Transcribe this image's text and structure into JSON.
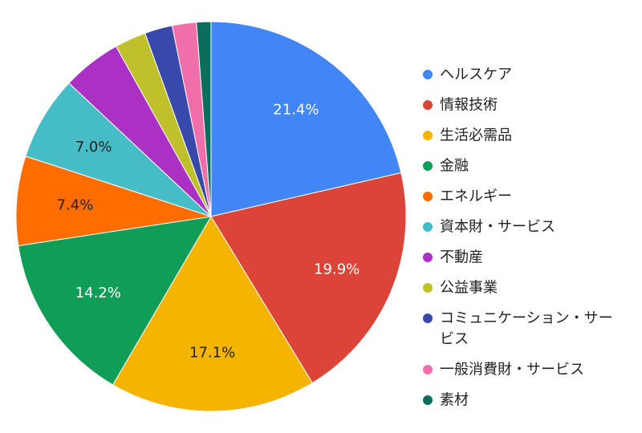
{
  "chart_data": {
    "type": "pie",
    "title": "",
    "legend_position": "right",
    "slices": [
      {
        "label": "ヘルスケア",
        "value": 21.4,
        "value_label": "21.4%",
        "color": "#4285F4",
        "label_color": "#ffffff"
      },
      {
        "label": "情報技術",
        "value": 19.9,
        "value_label": "19.9%",
        "color": "#DB4437",
        "label_color": "#ffffff"
      },
      {
        "label": "生活必需品",
        "value": 17.1,
        "value_label": "17.1%",
        "color": "#F4B400",
        "label_color": "#222222"
      },
      {
        "label": "金融",
        "value": 14.2,
        "value_label": "14.2%",
        "color": "#0F9D58",
        "label_color": "#ffffff"
      },
      {
        "label": "エネルギー",
        "value": 7.4,
        "value_label": "7.4%",
        "color": "#FF6D01",
        "label_color": "#222222"
      },
      {
        "label": "資本財・サービス",
        "value": 7.0,
        "value_label": "7.0%",
        "color": "#46BDC6",
        "label_color": "#222222"
      },
      {
        "label": "不動産",
        "value": 4.9,
        "value_label": "",
        "color": "#AB30C4",
        "label_color": "#ffffff"
      },
      {
        "label": "公益事業",
        "value": 2.6,
        "value_label": "",
        "color": "#C0C02A",
        "label_color": "#222222"
      },
      {
        "label": "コミュニケーション・サービス",
        "legend_lines": [
          "コミュニケーション・サー",
          "ビス"
        ],
        "value": 2.3,
        "value_label": "",
        "color": "#3949AB",
        "label_color": "#ffffff"
      },
      {
        "label": "一般消費財・サービス",
        "value": 2.0,
        "value_label": "",
        "color": "#F06EAA",
        "label_color": "#ffffff"
      },
      {
        "label": "素材",
        "value": 1.2,
        "value_label": "",
        "color": "#0B6E5C",
        "label_color": "#ffffff"
      }
    ]
  }
}
